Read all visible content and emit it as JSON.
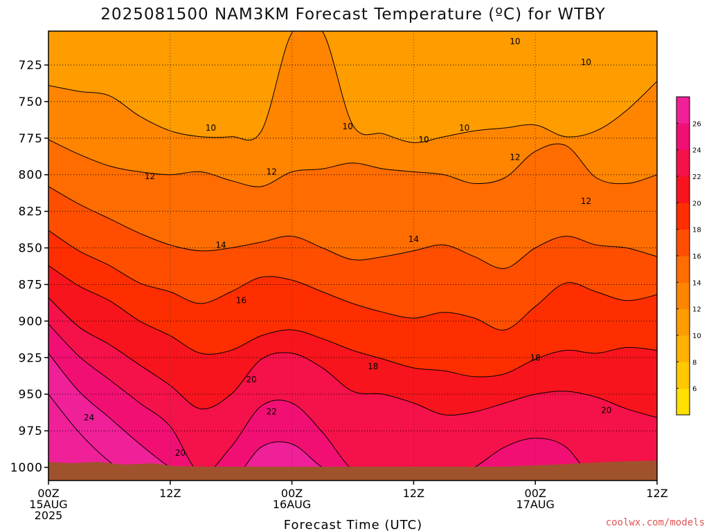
{
  "chart_data": {
    "type": "heatmap",
    "title": "2025081500 NAM3KM Forecast Temperature (ºC) for WTBY",
    "xlabel": "Forecast Time (UTC)",
    "ylabel": "",
    "x_ticks": [
      {
        "hour": 0,
        "line1": "00Z",
        "line2": "15AUG",
        "line3": "2025"
      },
      {
        "hour": 12,
        "line1": "12Z",
        "line2": "",
        "line3": ""
      },
      {
        "hour": 24,
        "line1": "00Z",
        "line2": "16AUG",
        "line3": ""
      },
      {
        "hour": 36,
        "line1": "12Z",
        "line2": "",
        "line3": ""
      },
      {
        "hour": 48,
        "line1": "00Z",
        "line2": "17AUG",
        "line3": ""
      },
      {
        "hour": 60,
        "line1": "12Z",
        "line2": "",
        "line3": ""
      }
    ],
    "xlim": [
      0,
      60
    ],
    "y_ticks": [
      "725",
      "750",
      "775",
      "800",
      "825",
      "850",
      "875",
      "900",
      "925",
      "950",
      "975",
      "1000"
    ],
    "ylim": [
      1010,
      700
    ],
    "y_scale": "pressure (hPa), inverted",
    "grid": true,
    "colorbar": {
      "levels": [
        4,
        6,
        8,
        10,
        12,
        14,
        16,
        18,
        20,
        22,
        24,
        26,
        28
      ],
      "tick_labels": [
        "6",
        "8",
        "10",
        "12",
        "14",
        "16",
        "18",
        "20",
        "22",
        "24",
        "26"
      ],
      "colors": [
        "#ffe000",
        "#ffc800",
        "#ffb000",
        "#ff9c00",
        "#ff8400",
        "#ff6c00",
        "#ff4e00",
        "#ff2e00",
        "#f8141c",
        "#f5114a",
        "#f20f74",
        "#f02098"
      ],
      "placement": "right"
    },
    "hours": [
      0,
      3,
      6,
      9,
      12,
      15,
      18,
      21,
      24,
      27,
      30,
      33,
      36,
      39,
      42,
      45,
      48,
      51,
      54,
      57,
      60
    ],
    "isotherms": [
      {
        "temp": 10,
        "pressure": [
          739,
          743,
          746,
          760,
          770,
          774,
          774,
          770,
          703,
          702,
          766,
          772,
          778,
          774,
          770,
          768,
          766,
          774,
          770,
          756,
          736
        ]
      },
      {
        "temp": 12,
        "pressure": [
          776,
          786,
          794,
          798,
          800,
          798,
          804,
          808,
          798,
          796,
          792,
          796,
          798,
          800,
          806,
          802,
          784,
          780,
          802,
          806,
          800
        ]
      },
      {
        "temp": 14,
        "pressure": [
          808,
          820,
          830,
          840,
          848,
          852,
          850,
          846,
          842,
          850,
          858,
          856,
          852,
          848,
          856,
          864,
          850,
          842,
          848,
          850,
          856
        ]
      },
      {
        "temp": 16,
        "pressure": [
          838,
          852,
          862,
          874,
          880,
          888,
          880,
          870,
          872,
          880,
          888,
          894,
          898,
          894,
          898,
          906,
          890,
          874,
          880,
          886,
          882
        ]
      },
      {
        "temp": 18,
        "pressure": [
          862,
          876,
          886,
          900,
          910,
          922,
          920,
          910,
          906,
          912,
          920,
          926,
          932,
          934,
          938,
          936,
          926,
          920,
          922,
          918,
          920
        ]
      },
      {
        "temp": 20,
        "pressure": [
          884,
          904,
          916,
          930,
          944,
          960,
          950,
          926,
          922,
          932,
          948,
          950,
          956,
          964,
          962,
          956,
          950,
          948,
          952,
          960,
          966
        ]
      },
      {
        "temp": 22,
        "pressure": [
          902,
          924,
          940,
          956,
          972,
          1004,
          986,
          958,
          956,
          976,
          1002,
          1010,
          1010,
          1010,
          1000,
          986,
          980,
          986,
          1010,
          1010,
          1010
        ]
      },
      {
        "temp": 24,
        "pressure": [
          922,
          948,
          966,
          984,
          1000,
          1010,
          1010,
          986,
          984,
          1000,
          1010,
          1010,
          1010,
          1010,
          1010,
          1010,
          1010,
          1010,
          1010,
          1010,
          1010
        ]
      },
      {
        "temp": 26,
        "pressure": [
          950,
          976,
          996,
          1010,
          1010,
          1010,
          1010,
          1010,
          1010,
          1010,
          1010,
          1010,
          1010,
          1010,
          1010,
          1010,
          1010,
          1010,
          1010,
          1010,
          1010
        ]
      }
    ],
    "contour_labels": [
      {
        "text": "10",
        "hour": 16,
        "pressure": 768
      },
      {
        "text": "10",
        "hour": 29.5,
        "pressure": 767
      },
      {
        "text": "10",
        "hour": 37,
        "pressure": 776
      },
      {
        "text": "10",
        "hour": 41,
        "pressure": 768
      },
      {
        "text": "10",
        "hour": 46,
        "pressure": 709
      },
      {
        "text": "10",
        "hour": 53,
        "pressure": 723
      },
      {
        "text": "12",
        "hour": 10,
        "pressure": 801
      },
      {
        "text": "12",
        "hour": 22,
        "pressure": 798
      },
      {
        "text": "12",
        "hour": 46,
        "pressure": 788
      },
      {
        "text": "12",
        "hour": 53,
        "pressure": 818
      },
      {
        "text": "14",
        "hour": 17,
        "pressure": 848
      },
      {
        "text": "14",
        "hour": 36,
        "pressure": 844
      },
      {
        "text": "16",
        "hour": 19,
        "pressure": 886
      },
      {
        "text": "18",
        "hour": 32,
        "pressure": 931
      },
      {
        "text": "18",
        "hour": 48,
        "pressure": 925
      },
      {
        "text": "20",
        "hour": 20,
        "pressure": 940
      },
      {
        "text": "20",
        "hour": 13,
        "pressure": 990
      },
      {
        "text": "20",
        "hour": 55,
        "pressure": 961
      },
      {
        "text": "22",
        "hour": 22,
        "pressure": 962
      },
      {
        "text": "24",
        "hour": 4,
        "pressure": 966
      }
    ],
    "ground_color": "#a0522d"
  },
  "credit": "coolwx.com/models"
}
